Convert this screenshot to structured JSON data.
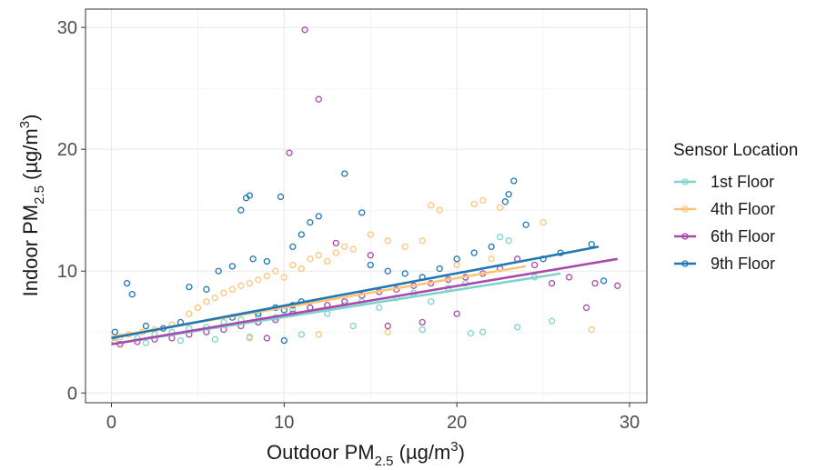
{
  "chart_data": {
    "type": "scatter",
    "title": "",
    "xlabel": "Outdoor PM2.5 (µg/m3)",
    "ylabel": "Indoor PM2.5 (µg/m3)",
    "xlim": [
      -1.5,
      31
    ],
    "ylim": [
      -0.8,
      31.5
    ],
    "xticks": [
      0,
      10,
      20,
      30
    ],
    "yticks": [
      0,
      10,
      20,
      30
    ],
    "grid": true,
    "legend": {
      "title": "Sensor Location",
      "position": "right"
    },
    "series": [
      {
        "name": "1st Floor",
        "color": "#7fd3cc",
        "trend": {
          "x": [
            0,
            26
          ],
          "y": [
            4.0,
            9.8
          ]
        },
        "points": [
          [
            0.2,
            4.2
          ],
          [
            1.5,
            4.5
          ],
          [
            2.5,
            4.8
          ],
          [
            3.5,
            5.0
          ],
          [
            4.5,
            5.3
          ],
          [
            5.5,
            5.4
          ],
          [
            6.5,
            5.8
          ],
          [
            7.5,
            6.0
          ],
          [
            8.5,
            6.3
          ],
          [
            9.5,
            6.2
          ],
          [
            10.5,
            6.8
          ],
          [
            11.5,
            7.0
          ],
          [
            12.5,
            6.5
          ],
          [
            13.5,
            7.2
          ],
          [
            14.5,
            7.5
          ],
          [
            15.5,
            7.0
          ],
          [
            16.5,
            7.8
          ],
          [
            17.5,
            8.2
          ],
          [
            18.5,
            7.5
          ],
          [
            19.5,
            8.6
          ],
          [
            20.5,
            9.0
          ],
          [
            21.5,
            5.0
          ],
          [
            22.5,
            12.8
          ],
          [
            23.5,
            5.4
          ],
          [
            24.5,
            9.5
          ],
          [
            25.5,
            5.9
          ],
          [
            23.0,
            12.5
          ],
          [
            20.8,
            4.9
          ],
          [
            18.0,
            5.2
          ],
          [
            14.0,
            5.5
          ],
          [
            11.0,
            4.8
          ],
          [
            8.0,
            4.6
          ],
          [
            6.0,
            4.4
          ],
          [
            4.0,
            4.3
          ],
          [
            2.0,
            4.1
          ]
        ]
      },
      {
        "name": "4th Floor",
        "color": "#fcc478",
        "trend": {
          "x": [
            0,
            24
          ],
          "y": [
            4.6,
            10.4
          ]
        },
        "points": [
          [
            0.2,
            4.5
          ],
          [
            0.5,
            4.6
          ],
          [
            1.0,
            4.8
          ],
          [
            1.8,
            5.0
          ],
          [
            2.5,
            5.2
          ],
          [
            3.5,
            5.6
          ],
          [
            4.5,
            6.5
          ],
          [
            5.0,
            7.0
          ],
          [
            5.5,
            7.5
          ],
          [
            6.0,
            7.8
          ],
          [
            6.5,
            8.2
          ],
          [
            7.0,
            8.5
          ],
          [
            7.5,
            8.8
          ],
          [
            8.0,
            9.0
          ],
          [
            8.5,
            9.3
          ],
          [
            9.0,
            9.6
          ],
          [
            9.5,
            10.0
          ],
          [
            10.0,
            9.5
          ],
          [
            10.5,
            10.5
          ],
          [
            11.0,
            10.2
          ],
          [
            11.5,
            11.0
          ],
          [
            12.0,
            11.3
          ],
          [
            12.5,
            10.8
          ],
          [
            13.0,
            11.5
          ],
          [
            13.5,
            12.0
          ],
          [
            14.0,
            11.8
          ],
          [
            15.0,
            13.0
          ],
          [
            16.0,
            12.5
          ],
          [
            17.0,
            12.0
          ],
          [
            18.0,
            12.5
          ],
          [
            18.5,
            15.4
          ],
          [
            19.0,
            15.0
          ],
          [
            21.0,
            15.5
          ],
          [
            21.5,
            15.8
          ],
          [
            22.5,
            15.2
          ],
          [
            25.0,
            14.0
          ],
          [
            27.8,
            5.2
          ],
          [
            20.0,
            10.5
          ],
          [
            22.0,
            11.0
          ],
          [
            16.0,
            5.0
          ],
          [
            12.0,
            4.8
          ],
          [
            8.0,
            4.5
          ]
        ]
      },
      {
        "name": "6th Floor",
        "color": "#a84aad",
        "trend": {
          "x": [
            0,
            29.3
          ],
          "y": [
            4.0,
            11.0
          ]
        },
        "points": [
          [
            0.5,
            4.0
          ],
          [
            1.5,
            4.2
          ],
          [
            2.5,
            4.4
          ],
          [
            3.5,
            4.5
          ],
          [
            4.5,
            4.8
          ],
          [
            5.5,
            5.0
          ],
          [
            6.5,
            5.2
          ],
          [
            7.5,
            5.5
          ],
          [
            8.5,
            5.8
          ],
          [
            9.5,
            6.0
          ],
          [
            10.5,
            6.5
          ],
          [
            11.2,
            29.8
          ],
          [
            12.0,
            24.1
          ],
          [
            10.3,
            19.7
          ],
          [
            11.5,
            7.0
          ],
          [
            12.5,
            7.2
          ],
          [
            13.5,
            7.5
          ],
          [
            14.5,
            8.0
          ],
          [
            15.5,
            8.3
          ],
          [
            16.5,
            8.5
          ],
          [
            17.5,
            8.8
          ],
          [
            18.5,
            9.0
          ],
          [
            19.5,
            9.3
          ],
          [
            20.5,
            9.5
          ],
          [
            21.5,
            9.8
          ],
          [
            22.5,
            10.2
          ],
          [
            23.5,
            11.0
          ],
          [
            24.5,
            10.5
          ],
          [
            25.5,
            9.0
          ],
          [
            26.5,
            9.5
          ],
          [
            27.5,
            7.0
          ],
          [
            28.0,
            9.0
          ],
          [
            29.3,
            8.8
          ],
          [
            13.0,
            12.3
          ],
          [
            15.0,
            11.3
          ],
          [
            20.0,
            6.5
          ],
          [
            18.0,
            5.8
          ],
          [
            16.0,
            5.5
          ],
          [
            9.0,
            4.5
          ]
        ]
      },
      {
        "name": "9th Floor",
        "color": "#1f77b4",
        "trend": {
          "x": [
            0,
            28.2
          ],
          "y": [
            4.5,
            12.0
          ]
        },
        "points": [
          [
            0.2,
            5.0
          ],
          [
            0.9,
            9.0
          ],
          [
            1.2,
            8.1
          ],
          [
            2.0,
            5.5
          ],
          [
            3.0,
            5.3
          ],
          [
            4.0,
            5.8
          ],
          [
            4.5,
            8.7
          ],
          [
            5.5,
            8.5
          ],
          [
            6.2,
            10.0
          ],
          [
            7.0,
            10.4
          ],
          [
            7.5,
            15.0
          ],
          [
            7.8,
            16.0
          ],
          [
            8.0,
            16.2
          ],
          [
            8.2,
            11.0
          ],
          [
            9.0,
            10.8
          ],
          [
            9.8,
            16.1
          ],
          [
            10.5,
            12.0
          ],
          [
            11.0,
            13.0
          ],
          [
            11.5,
            14.0
          ],
          [
            12.0,
            14.5
          ],
          [
            13.5,
            18.0
          ],
          [
            14.5,
            14.8
          ],
          [
            15.0,
            10.5
          ],
          [
            16.0,
            10.0
          ],
          [
            17.0,
            9.8
          ],
          [
            18.0,
            9.5
          ],
          [
            19.0,
            10.2
          ],
          [
            20.0,
            11.0
          ],
          [
            21.0,
            11.5
          ],
          [
            22.0,
            12.0
          ],
          [
            22.8,
            15.7
          ],
          [
            23.0,
            16.3
          ],
          [
            23.3,
            17.4
          ],
          [
            24.0,
            13.8
          ],
          [
            25.0,
            11.0
          ],
          [
            26.0,
            11.5
          ],
          [
            27.8,
            12.2
          ],
          [
            28.5,
            9.2
          ],
          [
            9.5,
            7.0
          ],
          [
            10.0,
            6.8
          ],
          [
            10.5,
            7.2
          ],
          [
            11.0,
            7.5
          ],
          [
            8.5,
            6.5
          ],
          [
            10.0,
            4.3
          ],
          [
            7.0,
            6.2
          ]
        ]
      }
    ]
  }
}
